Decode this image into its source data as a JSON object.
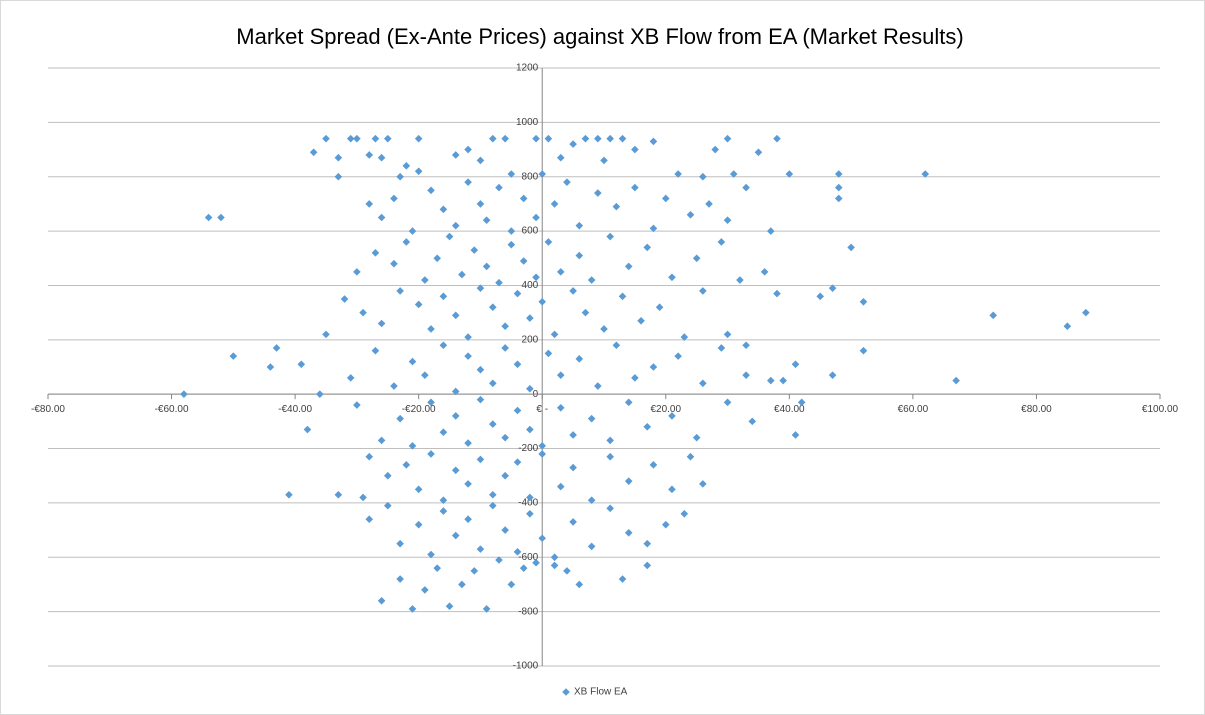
{
  "chart_data": {
    "type": "scatter",
    "title": "Market Spread (Ex-Ante Prices) against XB Flow from EA (Market Results)",
    "xlim": [
      -80,
      100
    ],
    "xticks": [
      {
        "value": -80,
        "label": "-€80.00"
      },
      {
        "value": -60,
        "label": "-€60.00"
      },
      {
        "value": -40,
        "label": "-€40.00"
      },
      {
        "value": -20,
        "label": "-€20.00"
      },
      {
        "value": 0,
        "label": "€ -"
      },
      {
        "value": 20,
        "label": "€20.00"
      },
      {
        "value": 40,
        "label": "€40.00"
      },
      {
        "value": 60,
        "label": "€60.00"
      },
      {
        "value": 80,
        "label": "€80.00"
      },
      {
        "value": 100,
        "label": "€100.00"
      }
    ],
    "ylim": [
      -1000,
      1200
    ],
    "yticks": [
      -1000,
      -800,
      -600,
      -400,
      -200,
      0,
      200,
      400,
      600,
      800,
      1000,
      1200
    ],
    "grid": true,
    "legend": "bottom",
    "series": [
      {
        "name": "XB Flow EA",
        "color": "#5b9bd5",
        "x": [
          -35,
          -31,
          -30,
          -27,
          -25,
          -20,
          -8,
          -6,
          -1,
          1,
          7,
          9,
          11,
          13,
          30,
          38,
          -37,
          -33,
          -28,
          -26,
          -22,
          -20,
          -14,
          -12,
          -10,
          -5,
          0,
          3,
          5,
          10,
          15,
          18,
          22,
          26,
          28,
          31,
          35,
          40,
          48,
          62,
          -33,
          -23,
          -28,
          -26,
          -24,
          -21,
          -18,
          -16,
          -14,
          -12,
          -10,
          -9,
          -7,
          -5,
          -3,
          -1,
          2,
          4,
          6,
          9,
          12,
          15,
          18,
          20,
          24,
          27,
          30,
          33,
          37,
          48,
          48,
          -54,
          -52,
          -30,
          -27,
          -24,
          -22,
          -19,
          -17,
          -15,
          -13,
          -11,
          -9,
          -7,
          -5,
          -3,
          -1,
          1,
          3,
          6,
          8,
          11,
          14,
          17,
          21,
          25,
          29,
          32,
          36,
          50,
          -35,
          -32,
          -29,
          -26,
          -23,
          -20,
          -18,
          -16,
          -14,
          -12,
          -10,
          -8,
          -6,
          -4,
          -2,
          0,
          2,
          5,
          7,
          10,
          13,
          16,
          19,
          23,
          26,
          30,
          33,
          38,
          45,
          47,
          52,
          73,
          85,
          88,
          -58,
          -50,
          -44,
          -43,
          -39,
          -36,
          -31,
          -27,
          -24,
          -21,
          -19,
          -16,
          -14,
          -12,
          -10,
          -8,
          -6,
          -4,
          -2,
          1,
          3,
          6,
          9,
          12,
          15,
          18,
          22,
          26,
          29,
          33,
          37,
          39,
          41,
          47,
          52,
          67,
          -38,
          -30,
          -26,
          -23,
          -21,
          -18,
          -16,
          -14,
          -12,
          -10,
          -8,
          -6,
          -4,
          -2,
          0,
          3,
          5,
          8,
          11,
          14,
          17,
          21,
          25,
          30,
          34,
          41,
          42,
          -41,
          -33,
          -29,
          -28,
          -25,
          -22,
          -20,
          -18,
          -16,
          -14,
          -12,
          -10,
          -8,
          -6,
          -4,
          -2,
          0,
          3,
          5,
          8,
          11,
          14,
          18,
          21,
          24,
          26,
          -28,
          -25,
          -23,
          -20,
          -18,
          -16,
          -14,
          -12,
          -10,
          -8,
          -6,
          -4,
          -2,
          0,
          2,
          5,
          8,
          11,
          14,
          17,
          20,
          23,
          -26,
          -23,
          -21,
          -19,
          -17,
          -15,
          -13,
          -11,
          -9,
          -7,
          -5,
          -3,
          -1,
          2,
          4,
          6,
          13,
          17
        ],
        "values": [
          940,
          940,
          940,
          940,
          940,
          940,
          940,
          940,
          940,
          940,
          940,
          940,
          940,
          940,
          940,
          940,
          890,
          870,
          880,
          870,
          840,
          820,
          880,
          900,
          860,
          810,
          810,
          870,
          920,
          860,
          900,
          930,
          810,
          800,
          900,
          810,
          890,
          810,
          810,
          810,
          800,
          800,
          700,
          650,
          720,
          600,
          750,
          680,
          620,
          780,
          700,
          640,
          760,
          600,
          720,
          650,
          700,
          780,
          620,
          740,
          690,
          760,
          610,
          720,
          660,
          700,
          640,
          760,
          600,
          760,
          720,
          650,
          650,
          450,
          520,
          480,
          560,
          420,
          500,
          580,
          440,
          530,
          470,
          410,
          550,
          490,
          430,
          560,
          450,
          510,
          420,
          580,
          470,
          540,
          430,
          500,
          560,
          420,
          450,
          540,
          220,
          350,
          300,
          260,
          380,
          330,
          240,
          360,
          290,
          210,
          390,
          320,
          250,
          370,
          280,
          340,
          220,
          380,
          300,
          240,
          360,
          270,
          320,
          210,
          380,
          220,
          180,
          370,
          360,
          390,
          340,
          290,
          250,
          300,
          0,
          140,
          100,
          170,
          110,
          0,
          60,
          160,
          30,
          120,
          70,
          180,
          10,
          140,
          90,
          40,
          170,
          110,
          20,
          150,
          70,
          130,
          30,
          180,
          60,
          100,
          140,
          40,
          170,
          70,
          50,
          50,
          110,
          70,
          160,
          50,
          -130,
          -40,
          -170,
          -90,
          -190,
          -30,
          -140,
          -80,
          -180,
          -20,
          -110,
          -160,
          -60,
          -130,
          -190,
          -50,
          -150,
          -90,
          -170,
          -30,
          -120,
          -80,
          -160,
          -30,
          -100,
          -150,
          -30,
          -370,
          -370,
          -380,
          -230,
          -300,
          -260,
          -350,
          -220,
          -390,
          -280,
          -330,
          -240,
          -370,
          -300,
          -250,
          -380,
          -220,
          -340,
          -270,
          -390,
          -230,
          -320,
          -260,
          -350,
          -230,
          -330,
          -460,
          -410,
          -550,
          -480,
          -590,
          -430,
          -520,
          -460,
          -570,
          -410,
          -500,
          -580,
          -440,
          -530,
          -600,
          -470,
          -560,
          -420,
          -510,
          -550,
          -480,
          -440,
          -760,
          -680,
          -790,
          -720,
          -640,
          -780,
          -700,
          -650,
          -790,
          -610,
          -700,
          -640,
          -620,
          -630,
          -650,
          -700,
          -680,
          -630
        ]
      }
    ]
  }
}
